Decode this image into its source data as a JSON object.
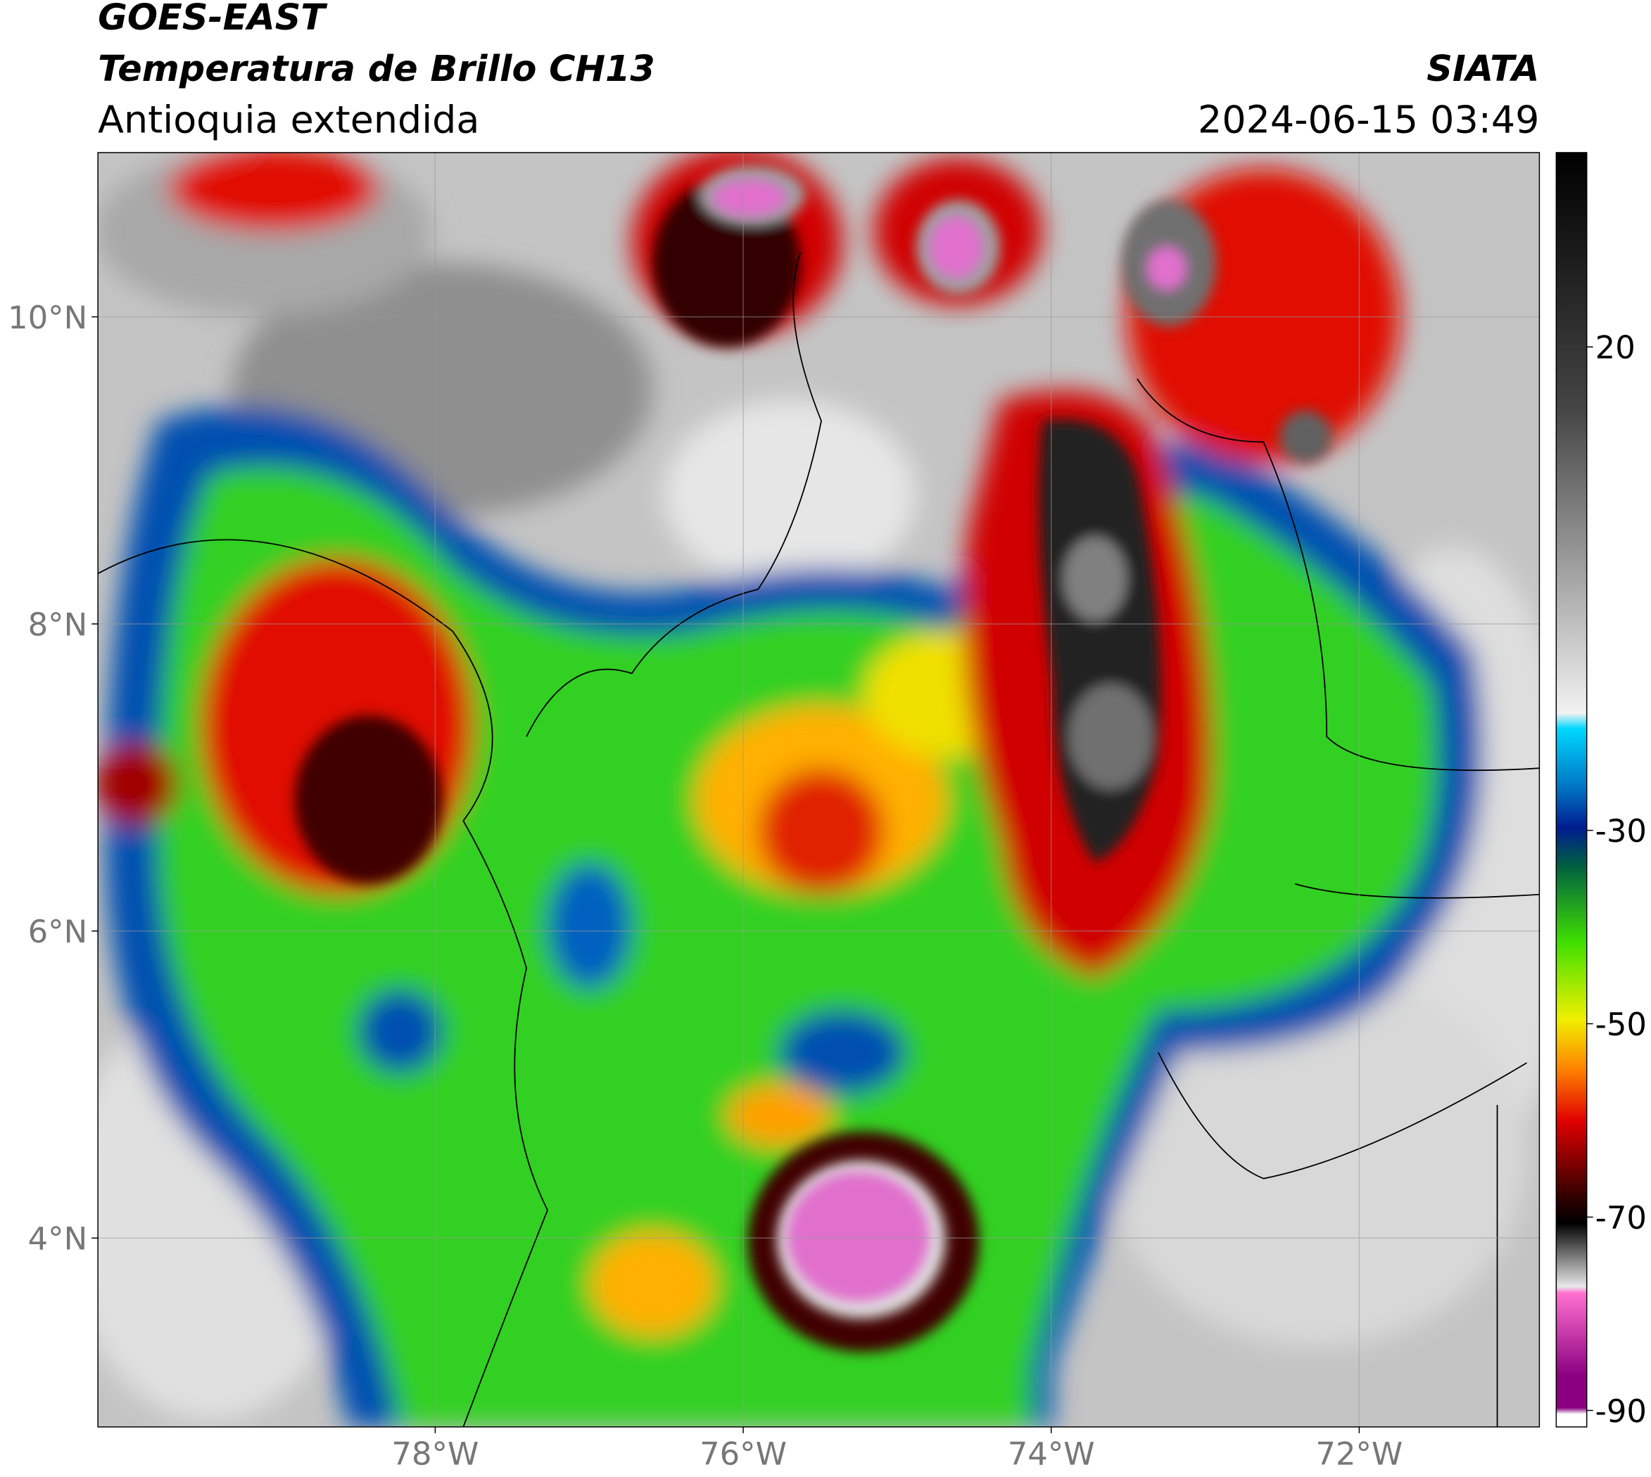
{
  "header": {
    "title": "GOES-EAST",
    "subtitle": "Temperatura de Brillo CH13",
    "region": "Antioquia extendida",
    "source": "SIATA",
    "datetime": "2024-06-15 03:49"
  },
  "map": {
    "xlim": [
      -80.19,
      -70.83
    ],
    "ylim": [
      2.77,
      11.07
    ],
    "xticks": [
      {
        "value": -78,
        "label": "78°W"
      },
      {
        "value": -76,
        "label": "76°W"
      },
      {
        "value": -74,
        "label": "74°W"
      },
      {
        "value": -72,
        "label": "72°W"
      }
    ],
    "yticks": [
      {
        "value": 4,
        "label": "4°N"
      },
      {
        "value": 6,
        "label": "6°N"
      },
      {
        "value": 8,
        "label": "8°N"
      },
      {
        "value": 10,
        "label": "10°N"
      }
    ],
    "grid": true
  },
  "colorbar": {
    "lim": [
      -91.7,
      40.1
    ],
    "ticks": [
      20,
      -30,
      -50,
      -70,
      -90
    ]
  }
}
